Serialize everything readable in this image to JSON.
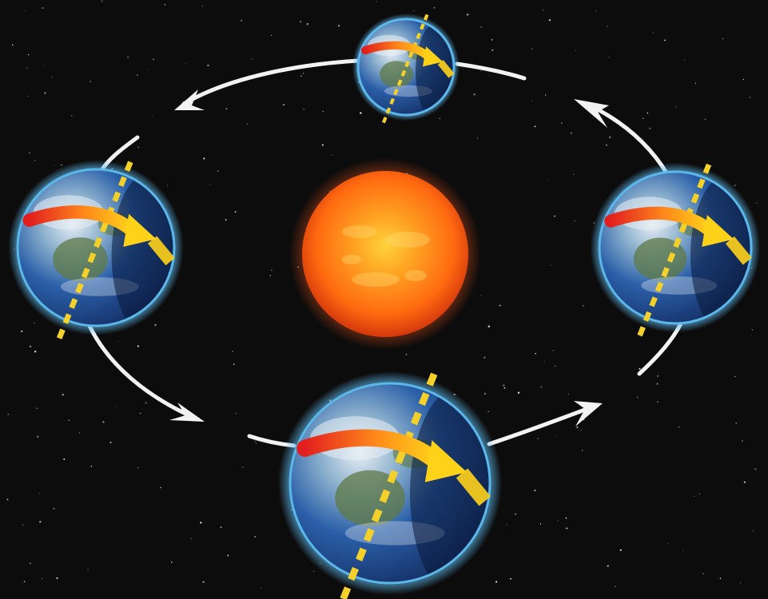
{
  "diagram": {
    "subject": "earth-orbit-around-sun",
    "colors": {
      "space_background": "#0d0c0c",
      "star": "#ffffff",
      "sun_core": "#ffd23a",
      "sun_mid": "#ff7a10",
      "sun_edge": "#d4380c",
      "sun_glow": "#ff5a1a",
      "ocean": "#2a5fa8",
      "ocean_dark": "#122a5e",
      "land": "#5f7a45",
      "cloud": "#e8eef4",
      "atmosphere": "#5bb7ea",
      "axis_line": "#f3d12a",
      "rotation_arrow_start": "#e21f1f",
      "rotation_arrow_end": "#ffd21a",
      "orbit_arrow": "#f2f2f2"
    },
    "earth_positions": [
      {
        "name": "top",
        "apparent_size": "small",
        "axis_tilt_deg": 22
      },
      {
        "name": "left",
        "apparent_size": "medium",
        "axis_tilt_deg": 22
      },
      {
        "name": "right",
        "apparent_size": "medium",
        "axis_tilt_deg": 22
      },
      {
        "name": "bottom",
        "apparent_size": "large",
        "axis_tilt_deg": 22
      }
    ],
    "orbit_direction": "counter-clockwise",
    "icons": [
      "sun-icon",
      "earth-globe-icon",
      "orbit-arrow-icon",
      "rotation-arrow-icon",
      "tilted-axis-icon"
    ]
  }
}
